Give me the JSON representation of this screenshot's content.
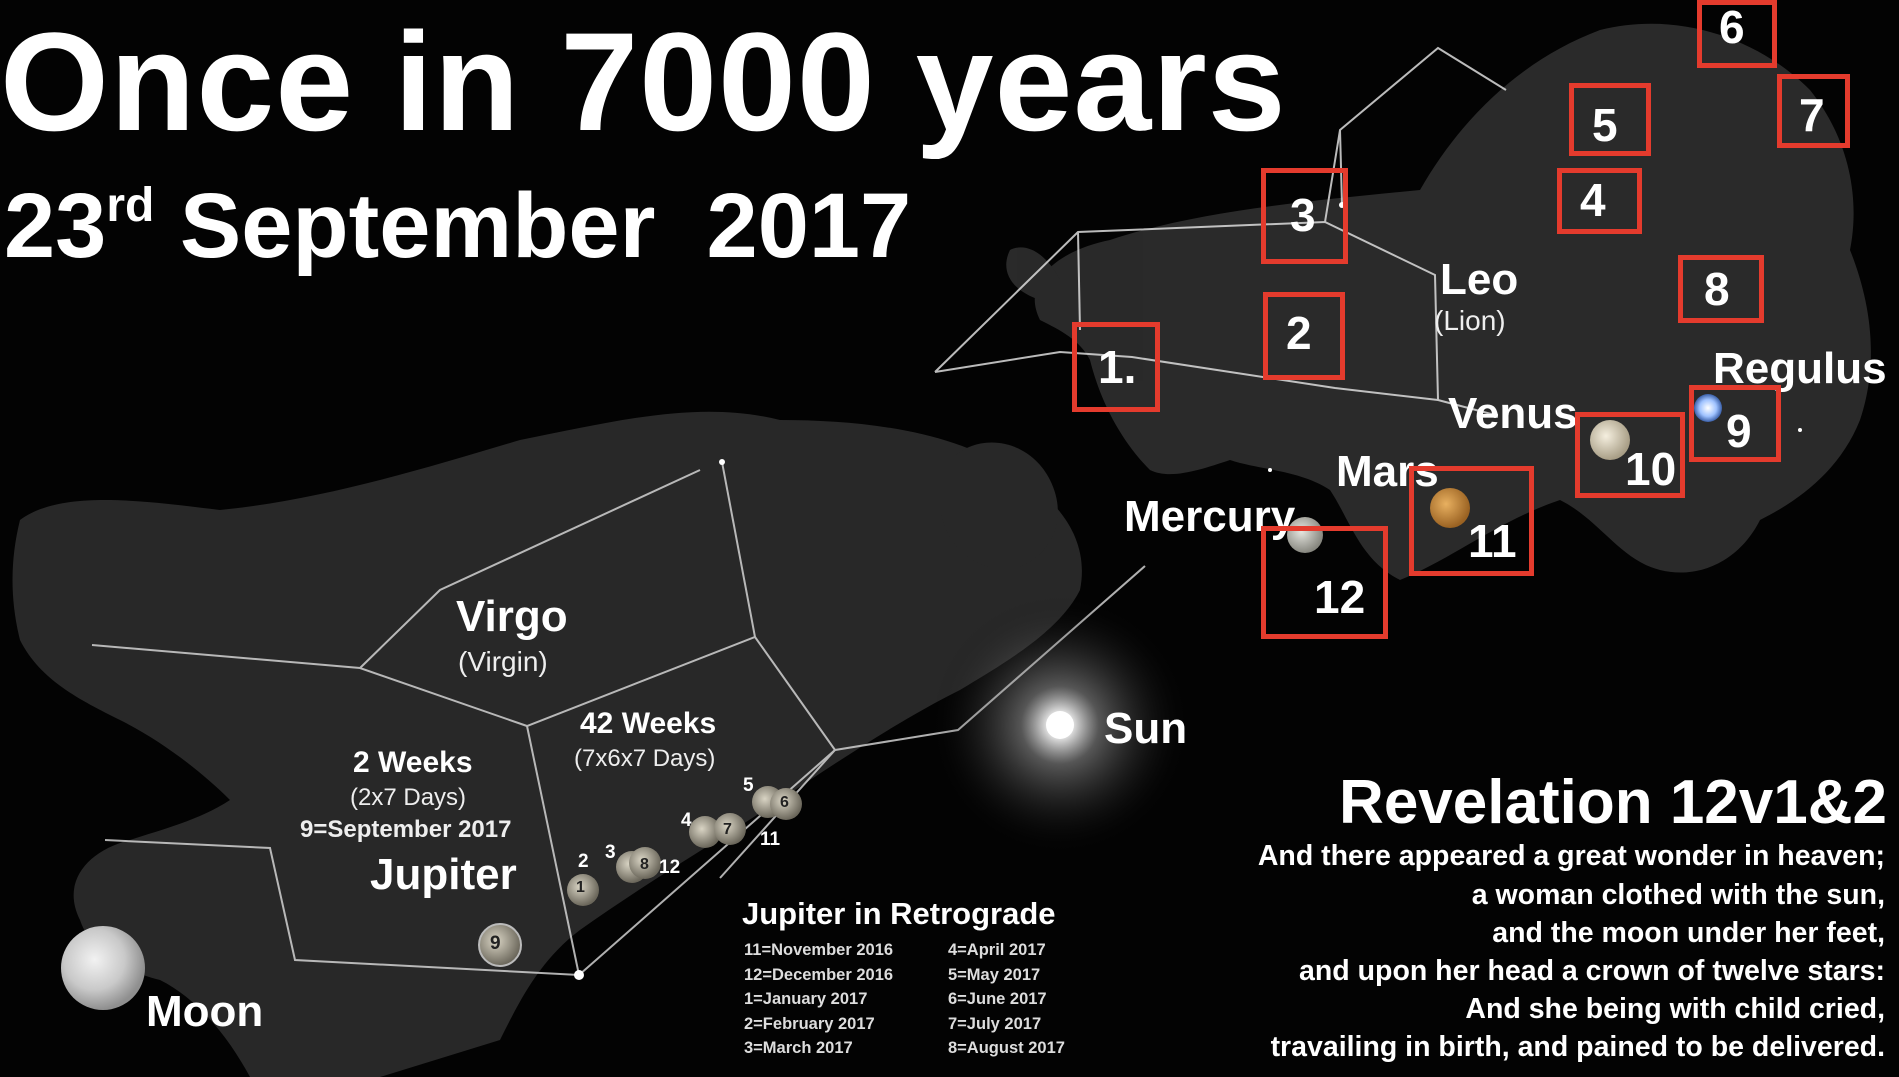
{
  "title": "Once in 7000 years",
  "date": {
    "day": "23",
    "suffix": "rd",
    "rest": "September  2017"
  },
  "constellations": {
    "leo": {
      "name": "Leo",
      "sub": "(Lion)"
    },
    "virgo": {
      "name": "Virgo",
      "sub": "(Virgin)"
    }
  },
  "bodies": {
    "regulus": "Regulus",
    "venus": "Venus",
    "mars": "Mars",
    "mercury": "Mercury",
    "sun": "Sun",
    "jupiter": "Jupiter",
    "moon": "Moon"
  },
  "star_numbers": [
    "1.",
    "2",
    "3",
    "4",
    "5",
    "6",
    "7",
    "8",
    "9",
    "10",
    "11",
    "12"
  ],
  "weeks_42": {
    "title": "42 Weeks",
    "sub": "(7x6x7 Days)"
  },
  "weeks_2": {
    "title": "2 Weeks",
    "sub": "(2x7 Days)",
    "note": "9=September 2017"
  },
  "jupiter_positions": [
    "1",
    "2",
    "3",
    "4",
    "5",
    "6",
    "7",
    "8",
    "9",
    "11",
    "12"
  ],
  "retrograde": {
    "title": "Jupiter in Retrograde",
    "left": [
      "11=November 2016",
      "12=December 2016",
      "1=January 2017",
      "2=February 2017",
      "3=March 2017"
    ],
    "right": [
      "4=April 2017",
      "5=May 2017",
      "6=June 2017",
      "7=July 2017",
      "8=August 2017"
    ]
  },
  "revelation": {
    "title": "Revelation 12v1&2",
    "lines": [
      "And there appeared a great wonder in heaven;",
      "a woman clothed with the sun,",
      "and the moon under her feet,",
      "and upon her head a crown of twelve stars:",
      "And she being with child cried,",
      "travailing in birth, and pained to be delivered."
    ]
  },
  "colors": {
    "box": "#e43b2d",
    "background": "#030303",
    "text": "#ffffff"
  }
}
